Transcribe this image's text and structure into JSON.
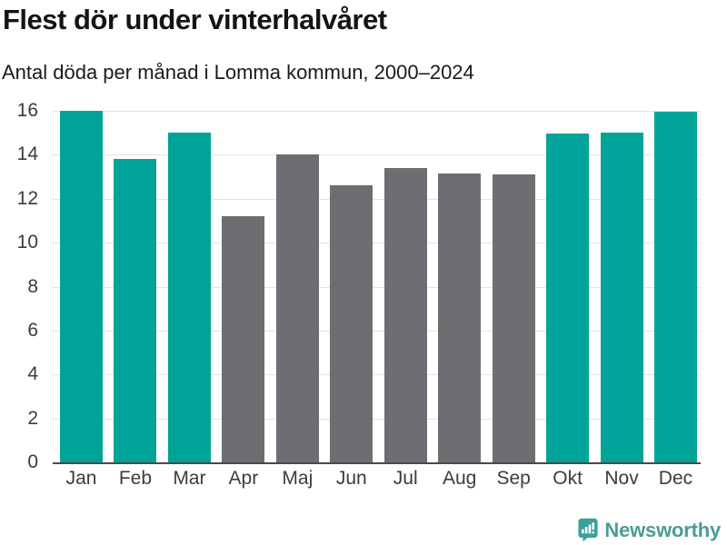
{
  "chart_data": {
    "type": "bar",
    "title": "Flest dör under vinterhalvåret",
    "subtitle": "Antal döda per månad i Lomma kommun, 2000–2024",
    "categories": [
      "Jan",
      "Feb",
      "Mar",
      "Apr",
      "Maj",
      "Jun",
      "Jul",
      "Aug",
      "Sep",
      "Okt",
      "Nov",
      "Dec"
    ],
    "values": [
      16,
      13.8,
      15,
      11.2,
      14,
      12.6,
      13.4,
      13.15,
      13.1,
      14.95,
      15,
      15.95
    ],
    "bar_colors": [
      "teal",
      "teal",
      "teal",
      "gray",
      "gray",
      "gray",
      "gray",
      "gray",
      "gray",
      "teal",
      "teal",
      "teal"
    ],
    "palette": {
      "teal": "#00a398",
      "gray": "#6e6e72"
    },
    "xlabel": "",
    "ylabel": "",
    "ylim": [
      0,
      16
    ],
    "yticks": [
      0,
      2,
      4,
      6,
      8,
      10,
      12,
      14,
      16
    ],
    "grid": "horizontal",
    "legend": "none",
    "colors": {
      "gridline": "#e4e4e4",
      "baseline": "#4a4a4a",
      "axis_text": "#3c3c3c",
      "title_text": "#141414",
      "subtitle_text": "#1a1a1a"
    }
  },
  "branding": {
    "logo_text": "Newsworthy",
    "logo_icon": "newsworthy-speech-bubble-chart-icon",
    "logo_text_color": "#4a9c96",
    "logo_icon_color": "#3ba19a"
  }
}
